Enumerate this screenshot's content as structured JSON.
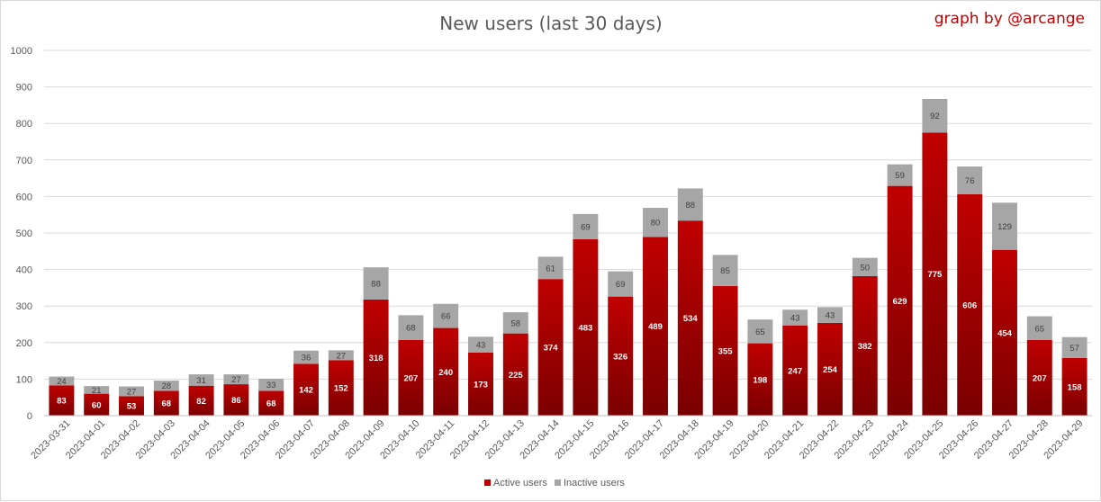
{
  "chart_data": {
    "type": "bar",
    "stacked": true,
    "title": "New users (last 30 days)",
    "credit": "graph by @arcange",
    "xlabel": "",
    "ylabel": "",
    "ylim": [
      0,
      1000
    ],
    "yticks": [
      "0",
      "100",
      "200",
      "300",
      "400",
      "500",
      "600",
      "700",
      "800",
      "900",
      "1000"
    ],
    "grid": true,
    "legend_position": "bottom-center",
    "categories": [
      "2023-03-31",
      "2023-04-01",
      "2023-04-02",
      "2023-04-03",
      "2023-04-04",
      "2023-04-05",
      "2023-04-06",
      "2023-04-07",
      "2023-04-08",
      "2023-04-09",
      "2023-04-10",
      "2023-04-11",
      "2023-04-12",
      "2023-04-13",
      "2023-04-14",
      "2023-04-15",
      "2023-04-16",
      "2023-04-17",
      "2023-04-18",
      "2023-04-19",
      "2023-04-20",
      "2023-04-21",
      "2023-04-22",
      "2023-04-23",
      "2023-04-24",
      "2023-04-25",
      "2023-04-26",
      "2023-04-27",
      "2023-04-28",
      "2023-04-29"
    ],
    "series": [
      {
        "name": "Active users",
        "color": "#c00000",
        "color_dark": "#7a0000",
        "values": [
          83,
          60,
          53,
          68,
          82,
          86,
          68,
          142,
          152,
          318,
          207,
          240,
          173,
          225,
          374,
          483,
          326,
          489,
          534,
          355,
          198,
          247,
          254,
          382,
          629,
          775,
          606,
          454,
          207,
          158
        ]
      },
      {
        "name": "Inactive users",
        "color": "#a6a6a6",
        "values": [
          24,
          21,
          27,
          28,
          31,
          27,
          33,
          36,
          27,
          88,
          68,
          66,
          43,
          58,
          61,
          69,
          69,
          80,
          88,
          85,
          65,
          43,
          43,
          50,
          59,
          92,
          76,
          129,
          65,
          57
        ]
      }
    ]
  }
}
